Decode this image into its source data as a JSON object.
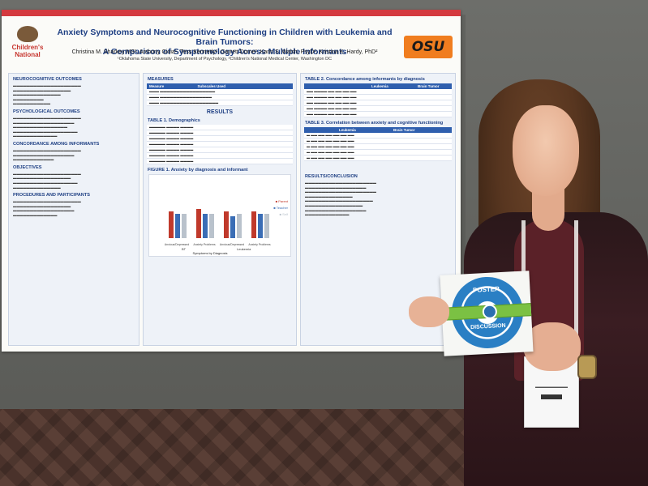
{
  "poster": {
    "logo_left": "Children's National",
    "logo_right": "OSU",
    "title_line1": "Anxiety Symptoms and Neurocognitive Functioning in Children with Leukemia and Brain Tumors:",
    "title_line2": "A Comparison of Symptomology Across Multiple Informants",
    "authors": "Christina M. Sharkey MS¹, Anthony Gioia¹, Tess Kennedy², Garrett Dome², Karin S. Walsh, PsyD², Kristina K. Hardy, PhD²",
    "affiliations": "¹Oklahoma State University, Department of Psychology, ²Children's National Medical Center, Washington DC",
    "col1": {
      "h1": "NEUROCOGNITIVE OUTCOMES",
      "h2": "PSYCHOLOGICAL OUTCOMES",
      "h3": "CONCORDANCE AMONG INFORMANTS",
      "h4": "OBJECTIVES",
      "h5": "PROCEDURES AND PARTICIPANTS"
    },
    "col2": {
      "h1": "MEASURES",
      "measure_hdr1": "Measure",
      "measure_hdr2": "Subscales Used",
      "results": "RESULTS",
      "table1": "TABLE 1. Demographics",
      "figure1": "FIGURE 1. Anxiety by diagnosis and informant"
    },
    "col3": {
      "table2": "TABLE 2. Concordance among informants by diagnosis",
      "leukemia": "Leukemia",
      "brain_tumor": "Brain Tumor",
      "table3": "TABLE 3. Correlation between anxiety and cognitive functioning",
      "results_conclusion": "RESULTS/CONCLUSION"
    }
  },
  "card": {
    "top": "POSTER",
    "bottom": "DISCUSSION"
  },
  "chart_data": {
    "type": "bar",
    "categories": [
      "Anxious/Depressed",
      "Anxiety Problems",
      "Anxious/Depressed",
      "Anxiety Problems"
    ],
    "series": [
      {
        "name": "Parent",
        "values": [
          0.55,
          0.6,
          0.55,
          0.55
        ],
        "color": "#c0392b"
      },
      {
        "name": "Teacher",
        "values": [
          0.5,
          0.5,
          0.45,
          0.5
        ],
        "color": "#3a6db5"
      },
      {
        "name": "Self",
        "values": [
          0.5,
          0.5,
          0.5,
          0.5
        ],
        "color": "#b9c2cc"
      }
    ],
    "xlabel": "Symptoms by Diagnosis",
    "groups": [
      "BT",
      "Leukemia"
    ]
  }
}
